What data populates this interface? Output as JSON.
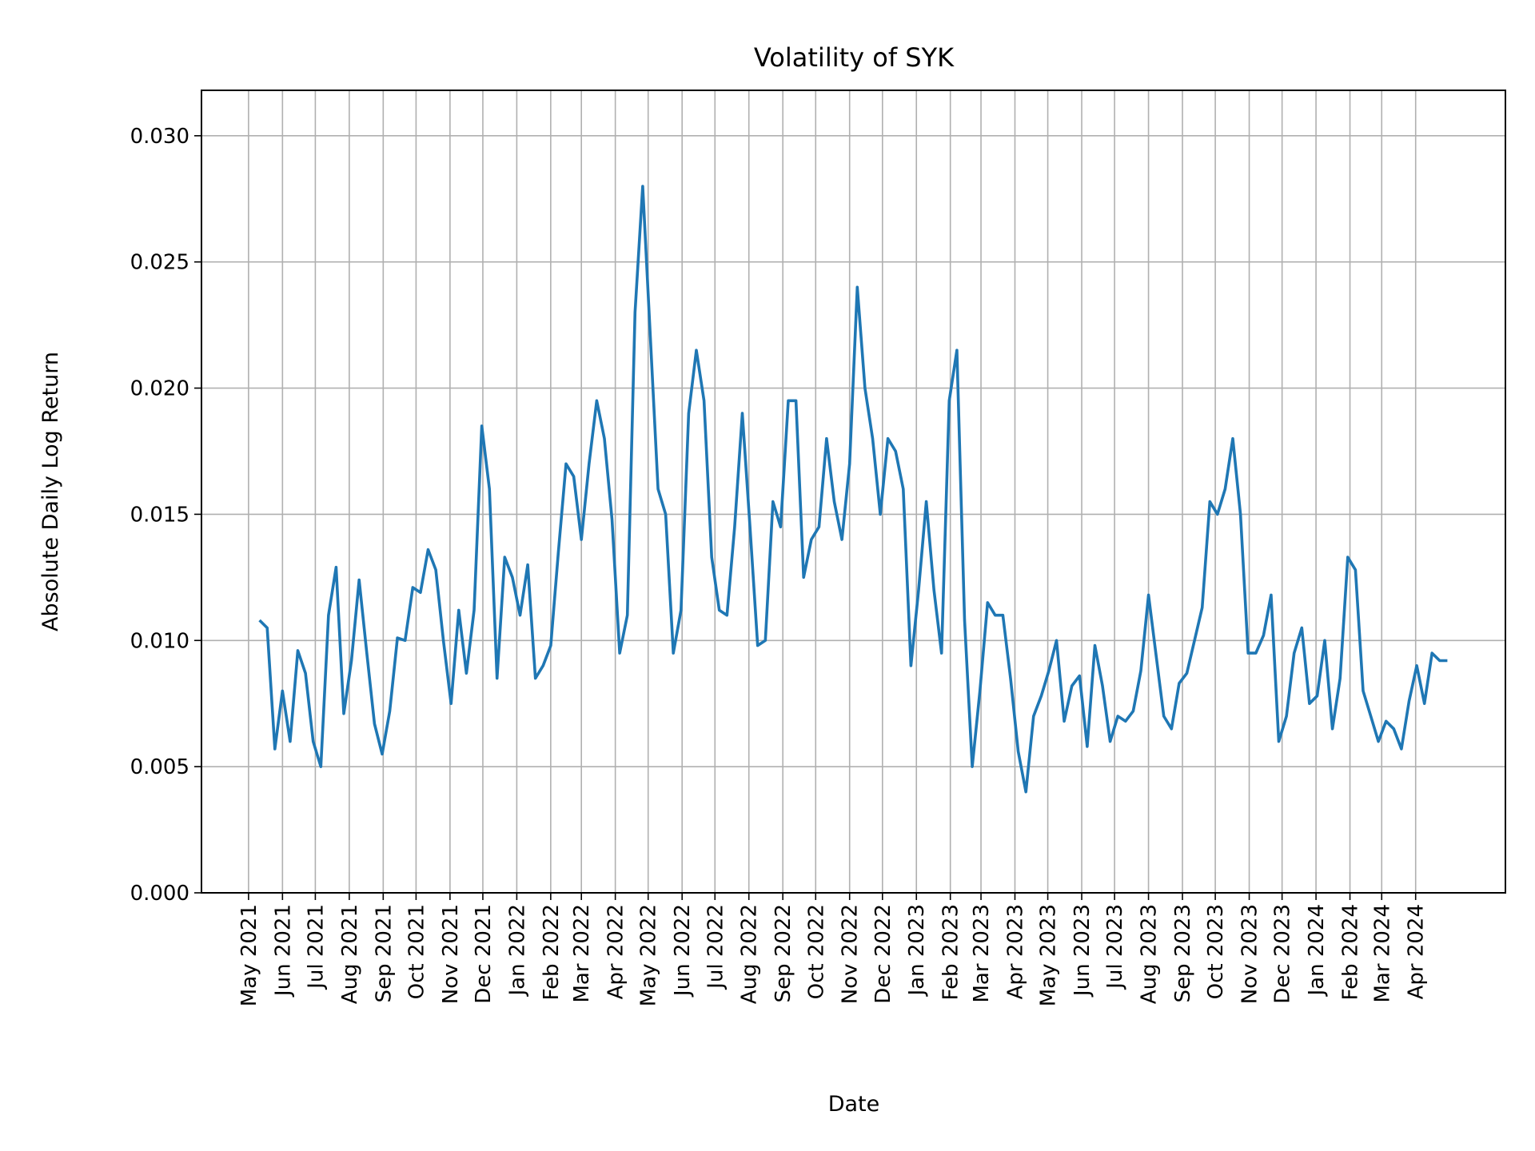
{
  "chart_data": {
    "type": "line",
    "title": "Volatility of SYK",
    "xlabel": "Date",
    "ylabel": "Absolute Daily Log Return",
    "xlim": [
      "2021-03-19",
      "2024-06-22"
    ],
    "ylim": [
      0,
      0.0318
    ],
    "grid": true,
    "line_color": "#1f77b4",
    "y_ticks": [
      0.0,
      0.005,
      0.01,
      0.015,
      0.02,
      0.025,
      0.03
    ],
    "y_tick_labels": [
      "0.000",
      "0.005",
      "0.010",
      "0.015",
      "0.020",
      "0.025",
      "0.030"
    ],
    "x_ticks": [
      "2021-05-01",
      "2021-06-01",
      "2021-07-01",
      "2021-08-01",
      "2021-09-01",
      "2021-10-01",
      "2021-11-01",
      "2021-12-01",
      "2022-01-01",
      "2022-02-01",
      "2022-03-01",
      "2022-04-01",
      "2022-05-01",
      "2022-06-01",
      "2022-07-01",
      "2022-08-01",
      "2022-09-01",
      "2022-10-01",
      "2022-11-01",
      "2022-12-01",
      "2023-01-01",
      "2023-02-01",
      "2023-03-01",
      "2023-04-01",
      "2023-05-01",
      "2023-06-01",
      "2023-07-01",
      "2023-08-01",
      "2023-09-01",
      "2023-10-01",
      "2023-11-01",
      "2023-12-01",
      "2024-01-01",
      "2024-02-01",
      "2024-03-01",
      "2024-04-01"
    ],
    "x_tick_labels": [
      "May 2021",
      "Jun 2021",
      "Jul 2021",
      "Aug 2021",
      "Sep 2021",
      "Oct 2021",
      "Nov 2021",
      "Dec 2021",
      "Jan 2022",
      "Feb 2022",
      "Mar 2022",
      "Apr 2022",
      "May 2022",
      "Jun 2022",
      "Jul 2022",
      "Aug 2022",
      "Sep 2022",
      "Oct 2022",
      "Nov 2022",
      "Dec 2022",
      "Jan 2023",
      "Feb 2023",
      "Mar 2023",
      "Apr 2023",
      "May 2023",
      "Jun 2023",
      "Jul 2023",
      "Aug 2023",
      "Sep 2023",
      "Oct 2023",
      "Nov 2023",
      "Dec 2023",
      "Jan 2024",
      "Feb 2024",
      "Mar 2024",
      "Apr 2024"
    ],
    "x": [
      "2021-05-11",
      "2021-05-18",
      "2021-05-25",
      "2021-06-01",
      "2021-06-08",
      "2021-06-15",
      "2021-06-22",
      "2021-06-29",
      "2021-07-06",
      "2021-07-13",
      "2021-07-20",
      "2021-07-27",
      "2021-08-03",
      "2021-08-10",
      "2021-08-17",
      "2021-08-24",
      "2021-08-31",
      "2021-09-07",
      "2021-09-14",
      "2021-09-21",
      "2021-09-28",
      "2021-10-05",
      "2021-10-12",
      "2021-10-19",
      "2021-10-26",
      "2021-11-02",
      "2021-11-09",
      "2021-11-16",
      "2021-11-23",
      "2021-11-30",
      "2021-12-07",
      "2021-12-14",
      "2021-12-21",
      "2021-12-28",
      "2022-01-04",
      "2022-01-11",
      "2022-01-18",
      "2022-01-25",
      "2022-02-01",
      "2022-02-08",
      "2022-02-15",
      "2022-02-22",
      "2022-03-01",
      "2022-03-08",
      "2022-03-15",
      "2022-03-22",
      "2022-03-29",
      "2022-04-05",
      "2022-04-12",
      "2022-04-19",
      "2022-04-26",
      "2022-05-03",
      "2022-05-10",
      "2022-05-17",
      "2022-05-24",
      "2022-05-31",
      "2022-06-07",
      "2022-06-14",
      "2022-06-21",
      "2022-06-28",
      "2022-07-05",
      "2022-07-12",
      "2022-07-19",
      "2022-07-26",
      "2022-08-02",
      "2022-08-09",
      "2022-08-16",
      "2022-08-23",
      "2022-08-30",
      "2022-09-06",
      "2022-09-13",
      "2022-09-20",
      "2022-09-27",
      "2022-10-04",
      "2022-10-11",
      "2022-10-18",
      "2022-10-25",
      "2022-11-01",
      "2022-11-08",
      "2022-11-15",
      "2022-11-22",
      "2022-11-29",
      "2022-12-06",
      "2022-12-13",
      "2022-12-20",
      "2022-12-27",
      "2023-01-03",
      "2023-01-10",
      "2023-01-17",
      "2023-01-24",
      "2023-01-31",
      "2023-02-07",
      "2023-02-14",
      "2023-02-21",
      "2023-02-28",
      "2023-03-07",
      "2023-03-14",
      "2023-03-21",
      "2023-03-28",
      "2023-04-04",
      "2023-04-11",
      "2023-04-18",
      "2023-04-25",
      "2023-05-02",
      "2023-05-09",
      "2023-05-16",
      "2023-05-23",
      "2023-05-30",
      "2023-06-06",
      "2023-06-13",
      "2023-06-20",
      "2023-06-27",
      "2023-07-04",
      "2023-07-11",
      "2023-07-18",
      "2023-07-25",
      "2023-08-01",
      "2023-08-08",
      "2023-08-15",
      "2023-08-22",
      "2023-08-29",
      "2023-09-05",
      "2023-09-12",
      "2023-09-19",
      "2023-09-26",
      "2023-10-03",
      "2023-10-10",
      "2023-10-17",
      "2023-10-24",
      "2023-10-31",
      "2023-11-07",
      "2023-11-14",
      "2023-11-21",
      "2023-11-28",
      "2023-12-05",
      "2023-12-12",
      "2023-12-19",
      "2023-12-26",
      "2024-01-02",
      "2024-01-09",
      "2024-01-16",
      "2024-01-23",
      "2024-01-30",
      "2024-02-06",
      "2024-02-13",
      "2024-02-20",
      "2024-02-27",
      "2024-03-05",
      "2024-03-12",
      "2024-03-19",
      "2024-03-26",
      "2024-04-02",
      "2024-04-09",
      "2024-04-16",
      "2024-04-23",
      "2024-04-30"
    ],
    "y": [
      0.0108,
      0.0105,
      0.0057,
      0.008,
      0.006,
      0.0096,
      0.0087,
      0.006,
      0.005,
      0.011,
      0.0129,
      0.0071,
      0.0092,
      0.0124,
      0.0095,
      0.0067,
      0.0055,
      0.0072,
      0.0101,
      0.01,
      0.0121,
      0.0119,
      0.0136,
      0.0128,
      0.01,
      0.0075,
      0.0112,
      0.0087,
      0.0112,
      0.0185,
      0.016,
      0.0085,
      0.0133,
      0.0125,
      0.011,
      0.013,
      0.0085,
      0.009,
      0.0098,
      0.0135,
      0.017,
      0.0165,
      0.014,
      0.017,
      0.0195,
      0.018,
      0.0148,
      0.0095,
      0.011,
      0.023,
      0.028,
      0.022,
      0.016,
      0.015,
      0.0095,
      0.0112,
      0.019,
      0.0215,
      0.0195,
      0.0133,
      0.0112,
      0.011,
      0.0145,
      0.019,
      0.0145,
      0.0098,
      0.01,
      0.0155,
      0.0145,
      0.0195,
      0.0195,
      0.0125,
      0.014,
      0.0145,
      0.018,
      0.0155,
      0.014,
      0.017,
      0.024,
      0.02,
      0.018,
      0.015,
      0.018,
      0.0175,
      0.016,
      0.009,
      0.012,
      0.0155,
      0.012,
      0.0095,
      0.0195,
      0.0215,
      0.0108,
      0.005,
      0.008,
      0.0115,
      0.011,
      0.011,
      0.0085,
      0.0056,
      0.004,
      0.007,
      0.0078,
      0.0088,
      0.01,
      0.0068,
      0.0082,
      0.0086,
      0.0058,
      0.0098,
      0.0082,
      0.006,
      0.007,
      0.0068,
      0.0072,
      0.0088,
      0.0118,
      0.0094,
      0.007,
      0.0065,
      0.0083,
      0.0087,
      0.01,
      0.0113,
      0.0155,
      0.015,
      0.016,
      0.018,
      0.015,
      0.0095,
      0.0095,
      0.0102,
      0.0118,
      0.006,
      0.007,
      0.0095,
      0.0105,
      0.0075,
      0.0078,
      0.01,
      0.0065,
      0.0085,
      0.0133,
      0.0128,
      0.008,
      0.007,
      0.006,
      0.0068,
      0.0065,
      0.0057,
      0.0076,
      0.009,
      0.0075,
      0.0095,
      0.0092,
      0.0092
    ]
  }
}
